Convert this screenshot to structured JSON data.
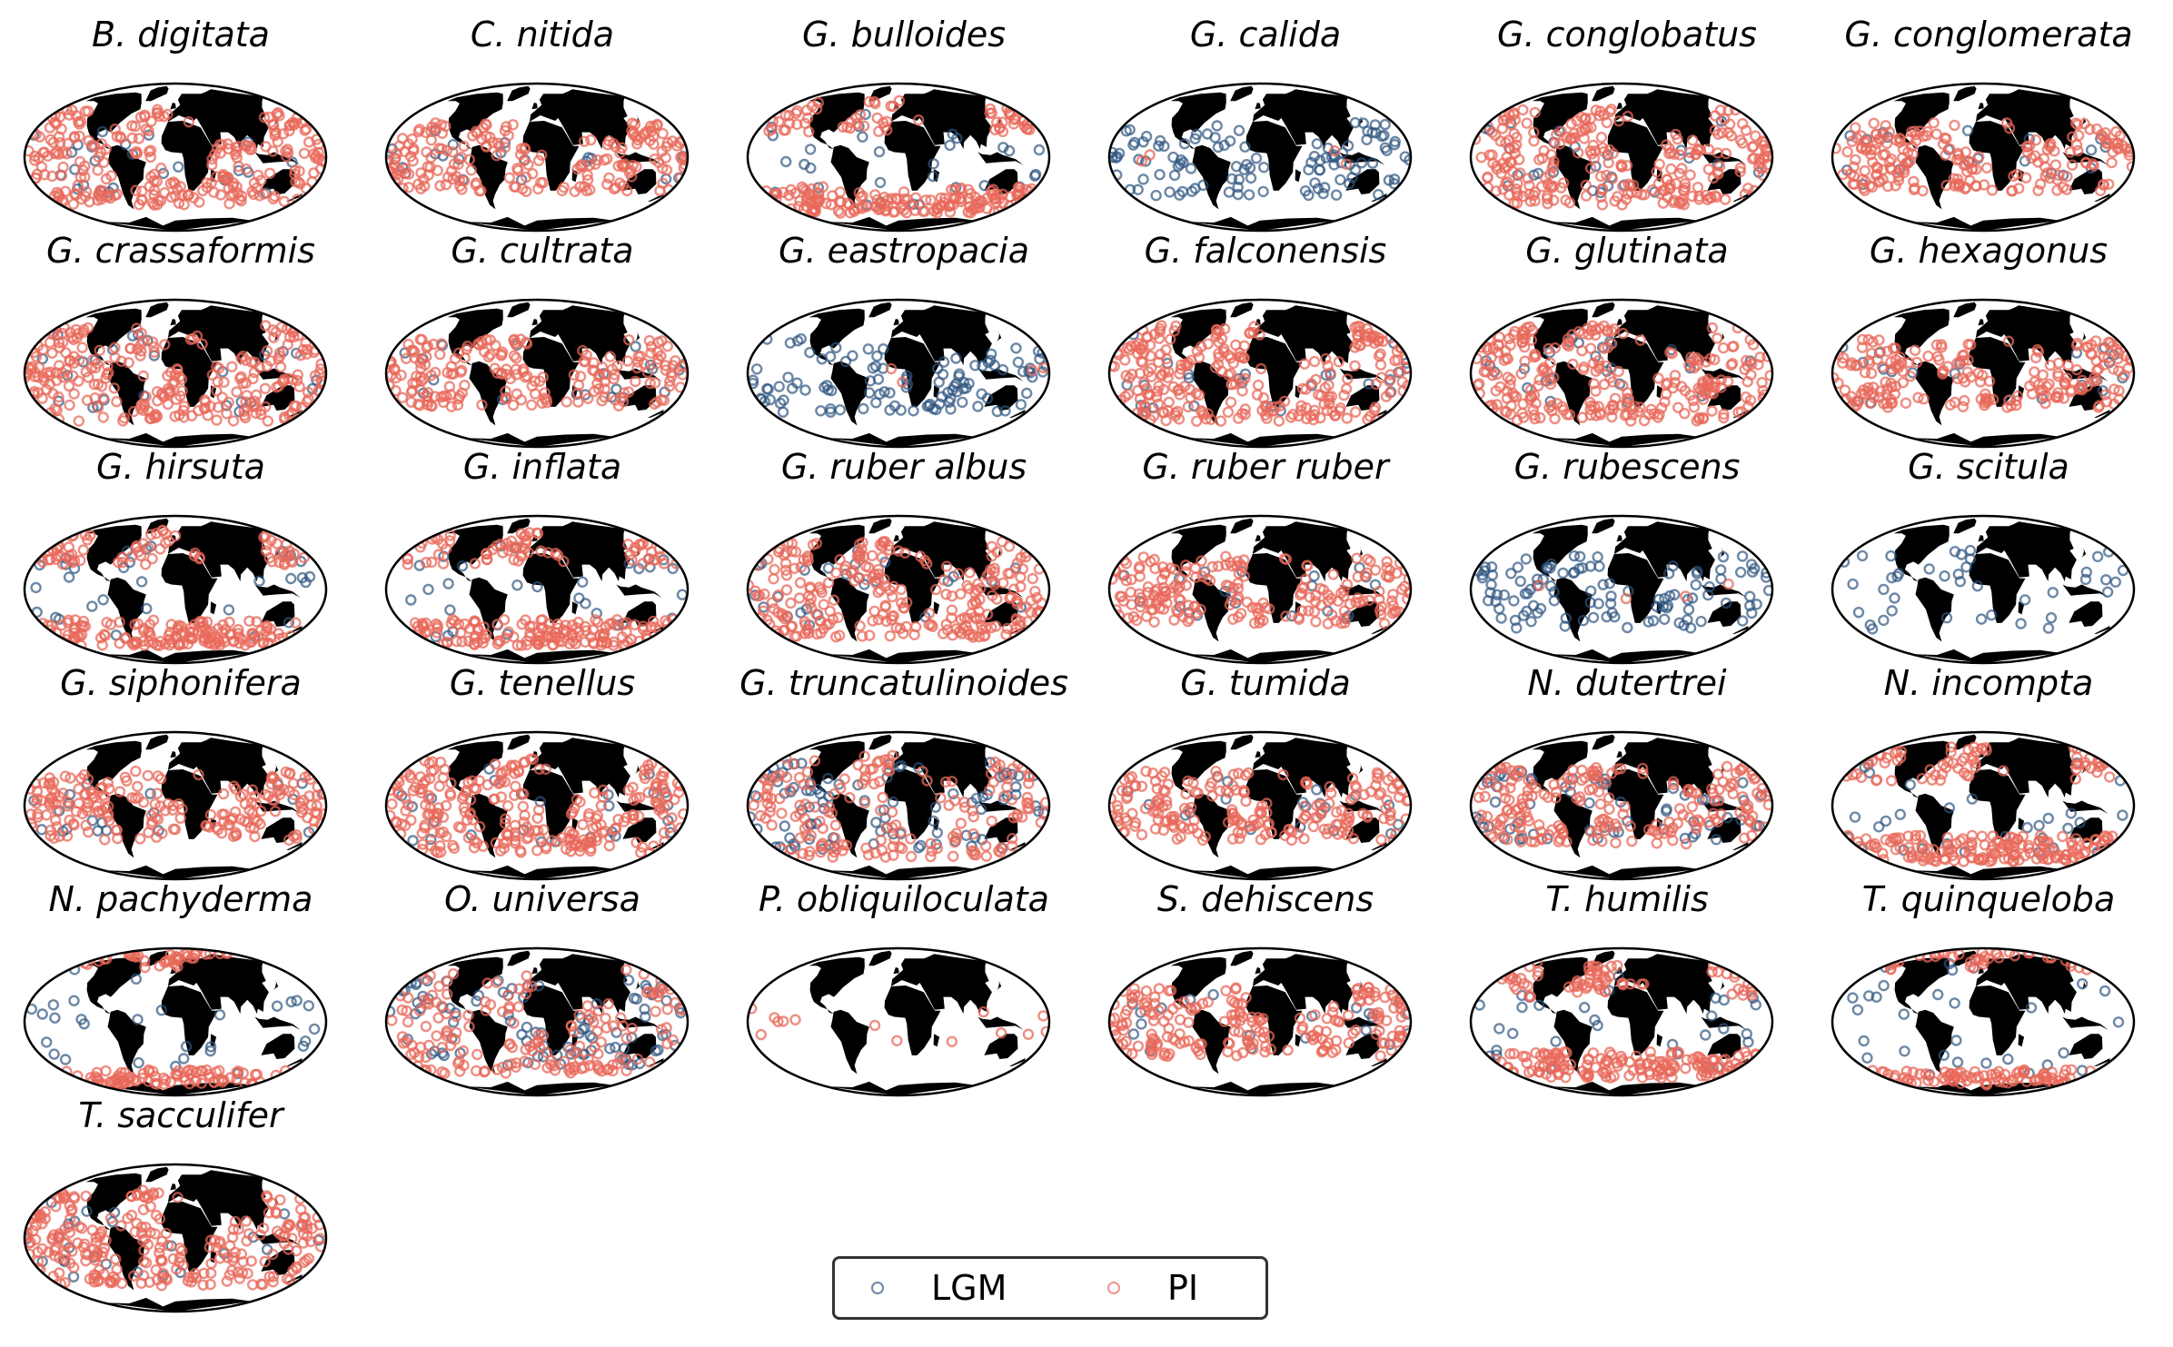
{
  "colors": {
    "lgm": "#2f5580",
    "pi": "#e8685a",
    "land": "#000000",
    "ocean": "#ffffff",
    "frame": "#000000"
  },
  "legend": {
    "items": [
      {
        "label": "LGM",
        "color": "#2f5580"
      },
      {
        "label": "PI",
        "color": "#e8685a"
      }
    ]
  },
  "panels": [
    {
      "title": "B. digitata",
      "coverage": "wide"
    },
    {
      "title": "C. nitida",
      "coverage": "tropical"
    },
    {
      "title": "G. bulloides",
      "coverage": "temperate"
    },
    {
      "title": "G. calida",
      "coverage": "lgm-only"
    },
    {
      "title": "G. conglobatus",
      "coverage": "wide"
    },
    {
      "title": "G. conglomerata",
      "coverage": "tropical"
    },
    {
      "title": "G. crassaformis",
      "coverage": "wide"
    },
    {
      "title": "G. cultrata",
      "coverage": "tropical"
    },
    {
      "title": "G. eastropacia",
      "coverage": "lgm-only"
    },
    {
      "title": "G. falconensis",
      "coverage": "wide"
    },
    {
      "title": "G. glutinata",
      "coverage": "wide"
    },
    {
      "title": "G. hexagonus",
      "coverage": "tropical"
    },
    {
      "title": "G. hirsuta",
      "coverage": "temperate"
    },
    {
      "title": "G. inflata",
      "coverage": "temperate"
    },
    {
      "title": "G. ruber albus",
      "coverage": "wide"
    },
    {
      "title": "G. ruber ruber",
      "coverage": "tropical"
    },
    {
      "title": "G. rubescens",
      "coverage": "lgm-only"
    },
    {
      "title": "G. scitula",
      "coverage": "lgm-sparse"
    },
    {
      "title": "G. siphonifera",
      "coverage": "tropical"
    },
    {
      "title": "G. tenellus",
      "coverage": "wide"
    },
    {
      "title": "G. truncatulinoides",
      "coverage": "mixed"
    },
    {
      "title": "G. tumida",
      "coverage": "tropical"
    },
    {
      "title": "N. dutertrei",
      "coverage": "mixed-tropical"
    },
    {
      "title": "N. incompta",
      "coverage": "temperate"
    },
    {
      "title": "N. pachyderma",
      "coverage": "polar"
    },
    {
      "title": "O. universa",
      "coverage": "mixed"
    },
    {
      "title": "P. obliquiloculata",
      "coverage": "sparse"
    },
    {
      "title": "S. dehiscens",
      "coverage": "tropical"
    },
    {
      "title": "T. humilis",
      "coverage": "temperate"
    },
    {
      "title": "T. quinqueloba",
      "coverage": "polar"
    },
    {
      "title": "T. sacculifer",
      "coverage": "wide"
    }
  ]
}
